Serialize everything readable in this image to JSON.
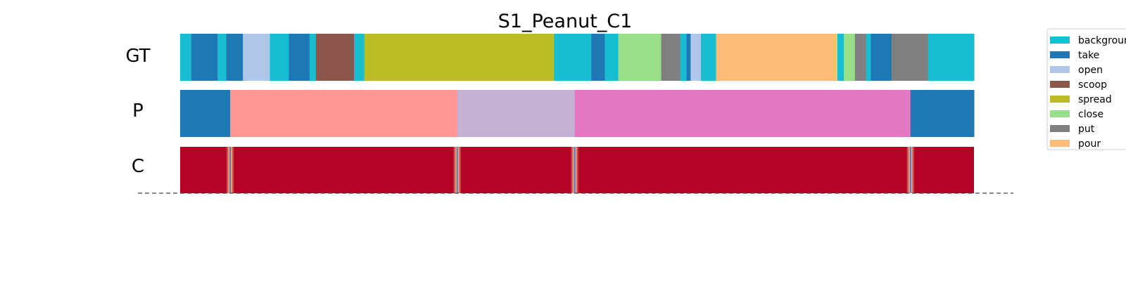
{
  "chart_data": {
    "type": "segmentation-timeline",
    "title": "S1_Peanut_C1",
    "rows": [
      "GT",
      "P",
      "C"
    ],
    "legend_placement": "right, clipped at page edge",
    "legend": [
      {
        "label": "background",
        "color": "#17becf"
      },
      {
        "label": "take",
        "color": "#1f77b4"
      },
      {
        "label": "open",
        "color": "#aec7e8"
      },
      {
        "label": "scoop",
        "color": "#8c564b"
      },
      {
        "label": "spread",
        "color": "#bcbd22"
      },
      {
        "label": "close",
        "color": "#98df8a"
      },
      {
        "label": "put",
        "color": "#7f7f7f"
      },
      {
        "label": "pour",
        "color": "#ffbb78"
      }
    ],
    "frame_range": [
      0,
      1000
    ],
    "gt_segments": [
      {
        "start": 0,
        "end": 14,
        "color": "#17becf"
      },
      {
        "start": 14,
        "end": 47,
        "color": "#1f77b4"
      },
      {
        "start": 47,
        "end": 58,
        "color": "#17becf"
      },
      {
        "start": 58,
        "end": 79,
        "color": "#1f77b4"
      },
      {
        "start": 79,
        "end": 113,
        "color": "#aec7e8"
      },
      {
        "start": 113,
        "end": 137,
        "color": "#17becf"
      },
      {
        "start": 137,
        "end": 163,
        "color": "#1f77b4"
      },
      {
        "start": 163,
        "end": 171,
        "color": "#17becf"
      },
      {
        "start": 171,
        "end": 219,
        "color": "#8c564b"
      },
      {
        "start": 219,
        "end": 232,
        "color": "#17becf"
      },
      {
        "start": 232,
        "end": 471,
        "color": "#bcbd22"
      },
      {
        "start": 471,
        "end": 518,
        "color": "#17becf"
      },
      {
        "start": 518,
        "end": 535,
        "color": "#1f77b4"
      },
      {
        "start": 535,
        "end": 552,
        "color": "#17becf"
      },
      {
        "start": 552,
        "end": 606,
        "color": "#98df8a"
      },
      {
        "start": 606,
        "end": 630,
        "color": "#7f7f7f"
      },
      {
        "start": 630,
        "end": 638,
        "color": "#17becf"
      },
      {
        "start": 638,
        "end": 643,
        "color": "#1f77b4"
      },
      {
        "start": 643,
        "end": 656,
        "color": "#aec7e8"
      },
      {
        "start": 656,
        "end": 675,
        "color": "#17becf"
      },
      {
        "start": 675,
        "end": 828,
        "color": "#ffbb78"
      },
      {
        "start": 828,
        "end": 836,
        "color": "#17becf"
      },
      {
        "start": 836,
        "end": 850,
        "color": "#98df8a"
      },
      {
        "start": 850,
        "end": 864,
        "color": "#7f7f7f"
      },
      {
        "start": 864,
        "end": 870,
        "color": "#17becf"
      },
      {
        "start": 870,
        "end": 896,
        "color": "#1f77b4"
      },
      {
        "start": 896,
        "end": 942,
        "color": "#7f7f7f"
      },
      {
        "start": 942,
        "end": 1000,
        "color": "#17becf"
      }
    ],
    "p_segments": [
      {
        "start": 0,
        "end": 63,
        "color": "#1f77b4"
      },
      {
        "start": 63,
        "end": 349,
        "color": "#ff9896"
      },
      {
        "start": 349,
        "end": 497,
        "color": "#c5b0d5"
      },
      {
        "start": 497,
        "end": 920,
        "color": "#e377c2"
      },
      {
        "start": 920,
        "end": 1000,
        "color": "#1f77b4"
      }
    ],
    "c_base_color": "#b40426",
    "c_boundaries": [
      63,
      349,
      497,
      920
    ]
  }
}
